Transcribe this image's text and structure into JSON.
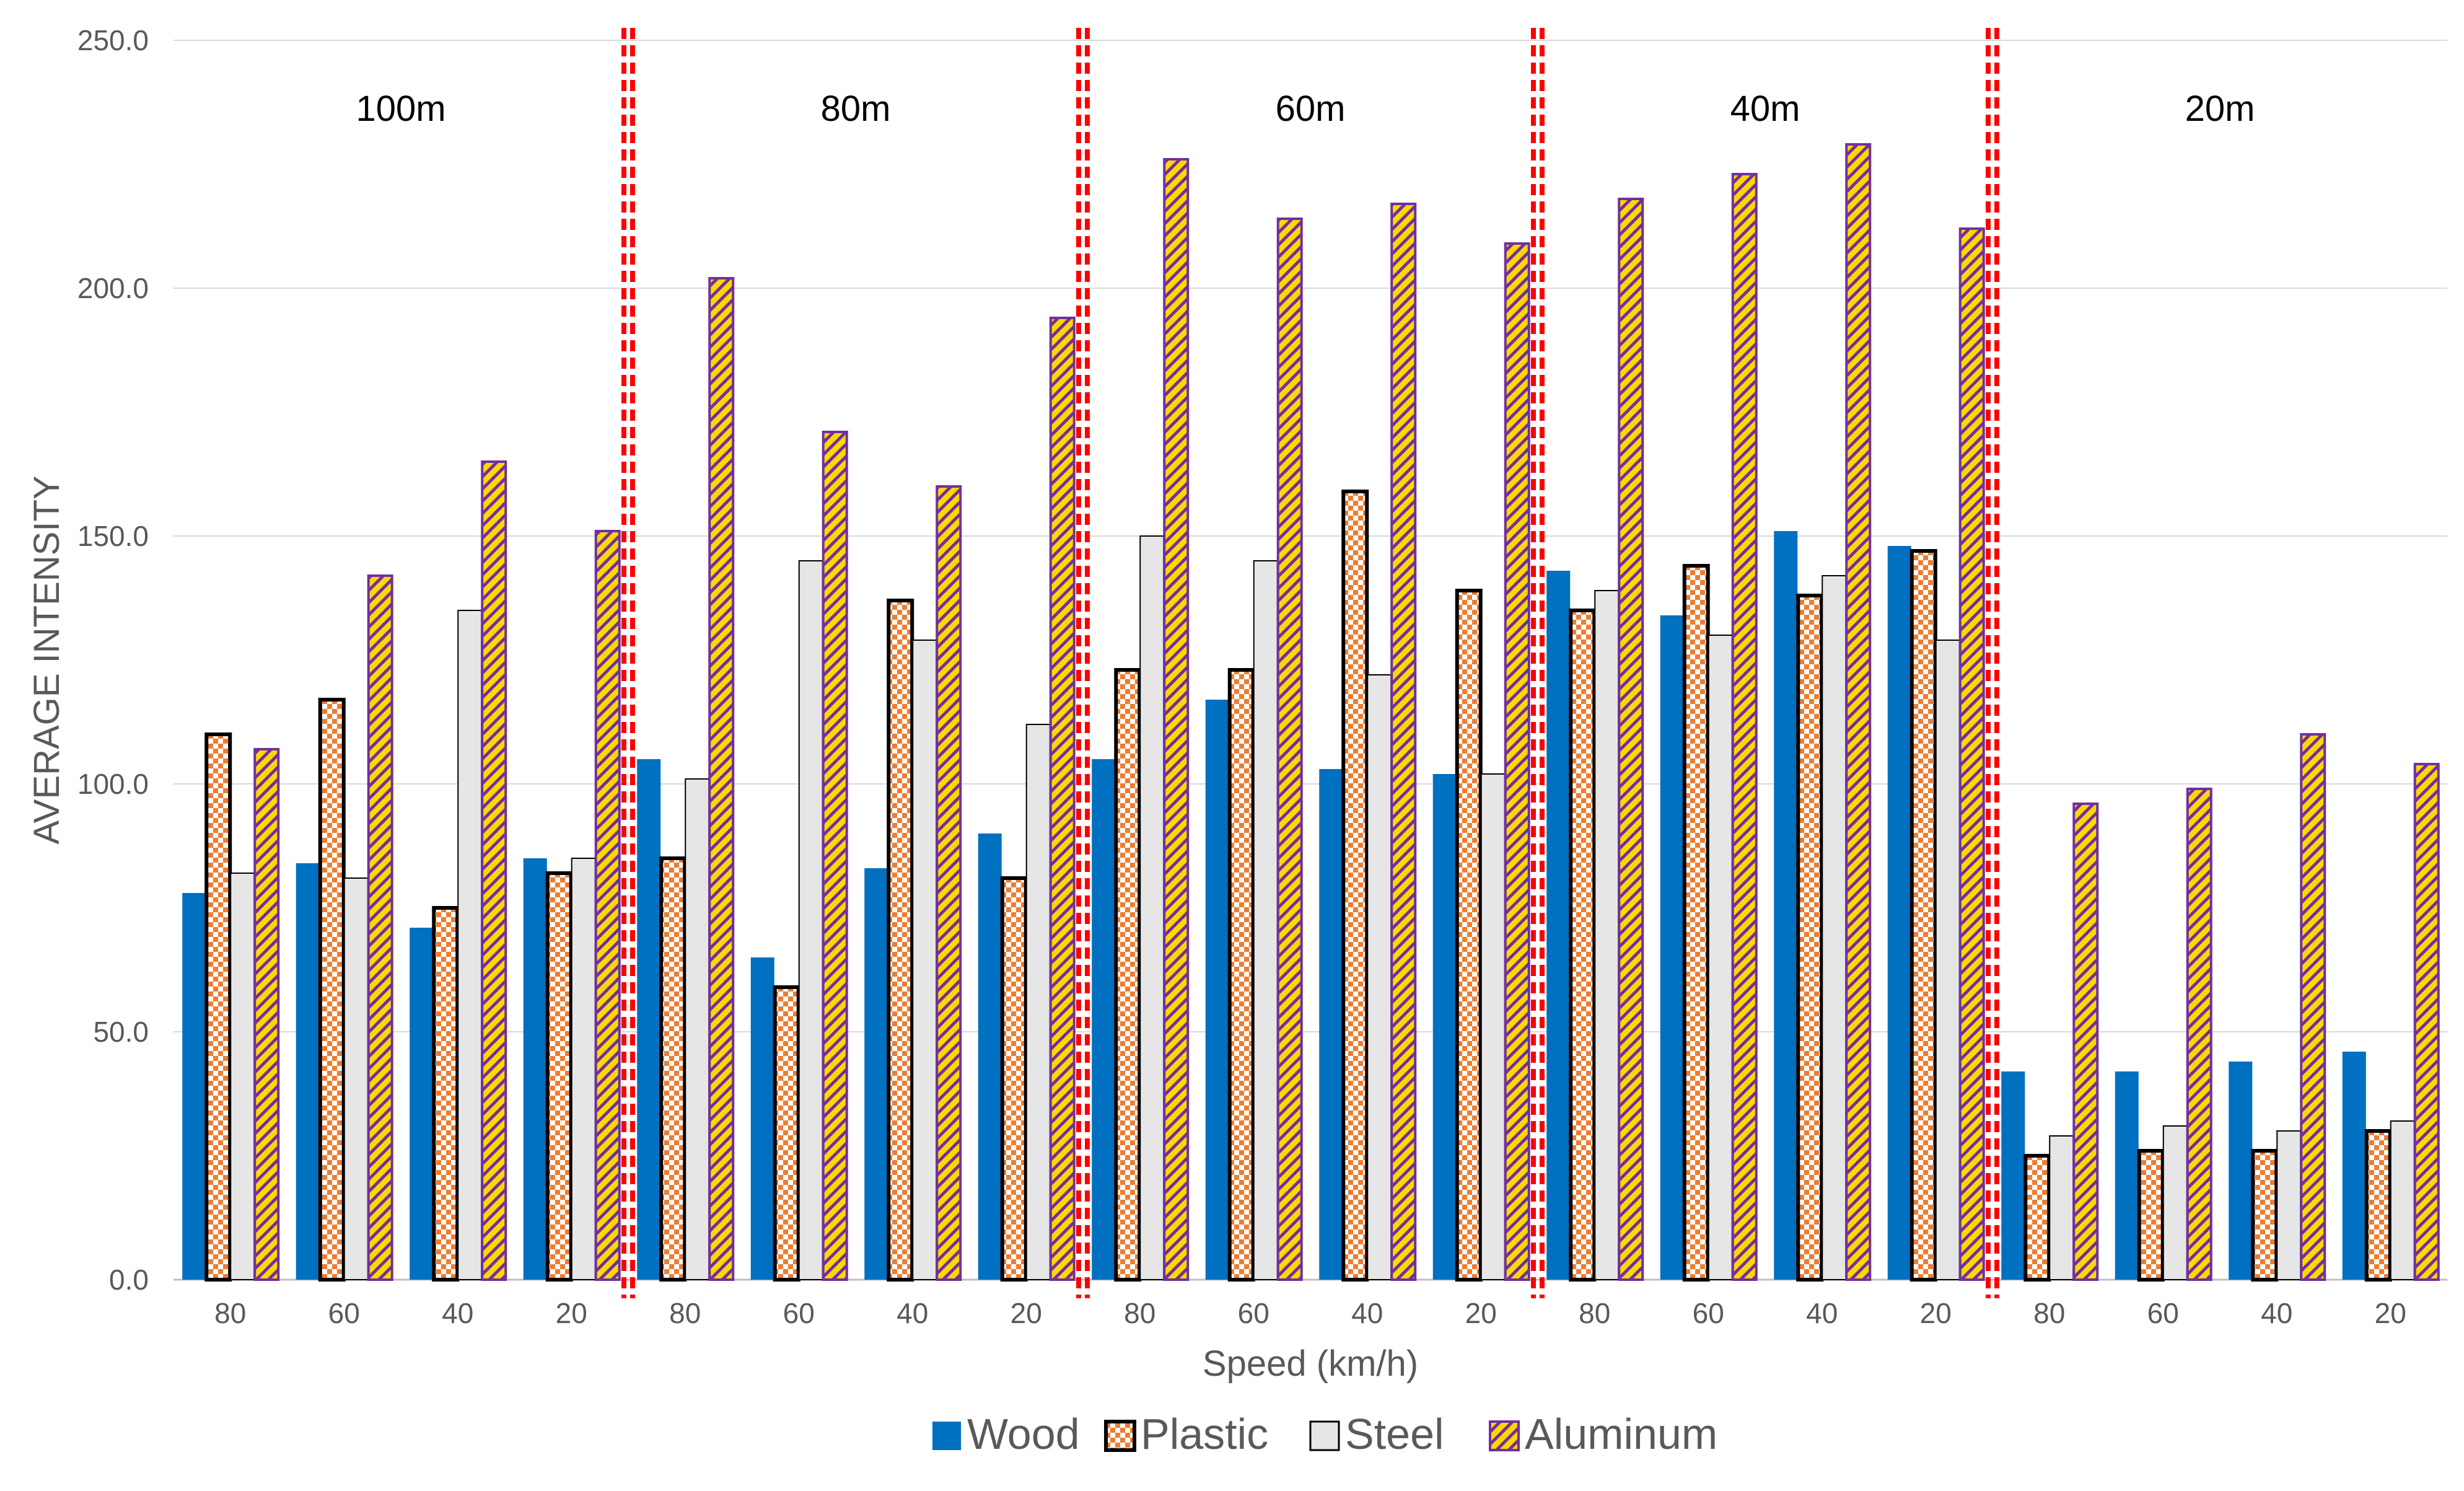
{
  "chart_data": {
    "type": "bar",
    "xlabel": "Speed (km/h)",
    "ylabel": "AVERAGE INTENSITY",
    "ylim": [
      0,
      250
    ],
    "yticks": [
      "0.0",
      "50.0",
      "100.0",
      "150.0",
      "200.0",
      "250.0"
    ],
    "grid": true,
    "legend_position": "bottom",
    "groups": [
      "100m",
      "80m",
      "60m",
      "40m",
      "20m"
    ],
    "categories": [
      "80",
      "60",
      "40",
      "20",
      "80",
      "60",
      "40",
      "20",
      "80",
      "60",
      "40",
      "20",
      "80",
      "60",
      "40",
      "20",
      "80",
      "60",
      "40",
      "20"
    ],
    "series": [
      {
        "name": "Wood",
        "color": "#0070C0",
        "pattern": "solid",
        "values": [
          78,
          84,
          71,
          85,
          105,
          65,
          83,
          90,
          105,
          117,
          103,
          102,
          143,
          134,
          151,
          148,
          42,
          42,
          44,
          46
        ]
      },
      {
        "name": "Plastic",
        "color": "#ED7D31",
        "pattern": "checker",
        "values": [
          110,
          117,
          75,
          82,
          85,
          59,
          137,
          81,
          123,
          123,
          159,
          139,
          135,
          144,
          138,
          147,
          25,
          26,
          26,
          30
        ]
      },
      {
        "name": "Steel",
        "color": "#E7E6E6",
        "pattern": "solid",
        "values": [
          82,
          81,
          135,
          85,
          101,
          145,
          129,
          112,
          150,
          145,
          122,
          102,
          139,
          130,
          142,
          129,
          29,
          31,
          30,
          32
        ]
      },
      {
        "name": "Aluminum",
        "color": "#FFD700",
        "pattern": "diagonal",
        "values": [
          107,
          142,
          165,
          151,
          202,
          171,
          160,
          194,
          226,
          214,
          217,
          209,
          218,
          223,
          229,
          212,
          96,
          99,
          110,
          104
        ]
      }
    ],
    "separator_color": "#FF0000"
  }
}
